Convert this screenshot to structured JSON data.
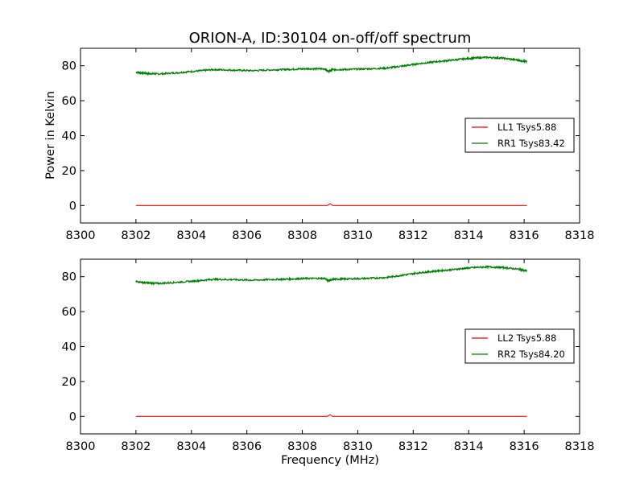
{
  "chart_data": [
    {
      "type": "line",
      "title": "ORION-A, ID:30104 on-off/off spectrum",
      "xlabel": "",
      "ylabel": "Power in Kelvin",
      "xlim": [
        8300,
        8318
      ],
      "ylim": [
        -10,
        90
      ],
      "xticks": [
        "8300",
        "8302",
        "8304",
        "8306",
        "8308",
        "8310",
        "8312",
        "8314",
        "8316",
        "8318"
      ],
      "yticks": [
        "0",
        "20",
        "40",
        "60",
        "80"
      ],
      "grid": false,
      "legend_position": "right",
      "series": [
        {
          "name": "LL1 Tsys5.88",
          "color": "#ff0000",
          "x": [
            8302.0,
            8308.9,
            8309.0,
            8309.1,
            8316.1
          ],
          "y": [
            0.0,
            0.0,
            1.0,
            0.0,
            0.0
          ]
        },
        {
          "name": "RR1 Tsys83.42",
          "color": "#008000",
          "x": [
            8302.0,
            8302.4,
            8302.8,
            8303.5,
            8304.2,
            8304.8,
            8305.5,
            8306.2,
            8307.0,
            8307.6,
            8308.2,
            8308.8,
            8308.95,
            8309.1,
            8309.6,
            8310.3,
            8311.0,
            8311.6,
            8312.2,
            8312.8,
            8313.4,
            8314.0,
            8314.6,
            8315.2,
            8315.8,
            8316.1
          ],
          "y": [
            76.3,
            75.6,
            75.3,
            76.0,
            77.0,
            77.8,
            77.5,
            77.2,
            77.7,
            78.0,
            78.3,
            78.2,
            76.8,
            77.8,
            77.9,
            78.2,
            78.6,
            79.8,
            81.2,
            82.3,
            83.2,
            84.2,
            84.8,
            84.4,
            83.2,
            82.3
          ]
        }
      ]
    },
    {
      "type": "line",
      "title": "",
      "xlabel": "Frequency (MHz)",
      "ylabel": "",
      "xlim": [
        8300,
        8318
      ],
      "ylim": [
        -10,
        90
      ],
      "xticks": [
        "8300",
        "8302",
        "8304",
        "8306",
        "8308",
        "8310",
        "8312",
        "8314",
        "8316",
        "8318"
      ],
      "yticks": [
        "0",
        "20",
        "40",
        "60",
        "80"
      ],
      "grid": false,
      "legend_position": "right",
      "series": [
        {
          "name": "LL2 Tsys5.88",
          "color": "#ff0000",
          "x": [
            8302.0,
            8308.9,
            8309.0,
            8309.1,
            8316.1
          ],
          "y": [
            0.0,
            0.0,
            1.0,
            0.0,
            0.0
          ]
        },
        {
          "name": "RR2 Tsys84.20",
          "color": "#008000",
          "x": [
            8302.0,
            8302.4,
            8302.8,
            8303.5,
            8304.2,
            8304.8,
            8305.5,
            8306.2,
            8307.0,
            8307.6,
            8308.2,
            8308.8,
            8308.95,
            8309.1,
            8309.6,
            8310.3,
            8311.0,
            8311.6,
            8312.2,
            8312.8,
            8313.4,
            8314.0,
            8314.6,
            8315.2,
            8315.8,
            8316.1
          ],
          "y": [
            77.3,
            76.4,
            76.1,
            76.8,
            77.6,
            78.5,
            78.3,
            78.0,
            78.4,
            78.7,
            79.0,
            79.0,
            77.6,
            78.5,
            78.7,
            79.0,
            79.5,
            80.8,
            82.2,
            83.2,
            84.0,
            85.0,
            85.6,
            85.3,
            84.3,
            83.2
          ]
        }
      ]
    }
  ]
}
